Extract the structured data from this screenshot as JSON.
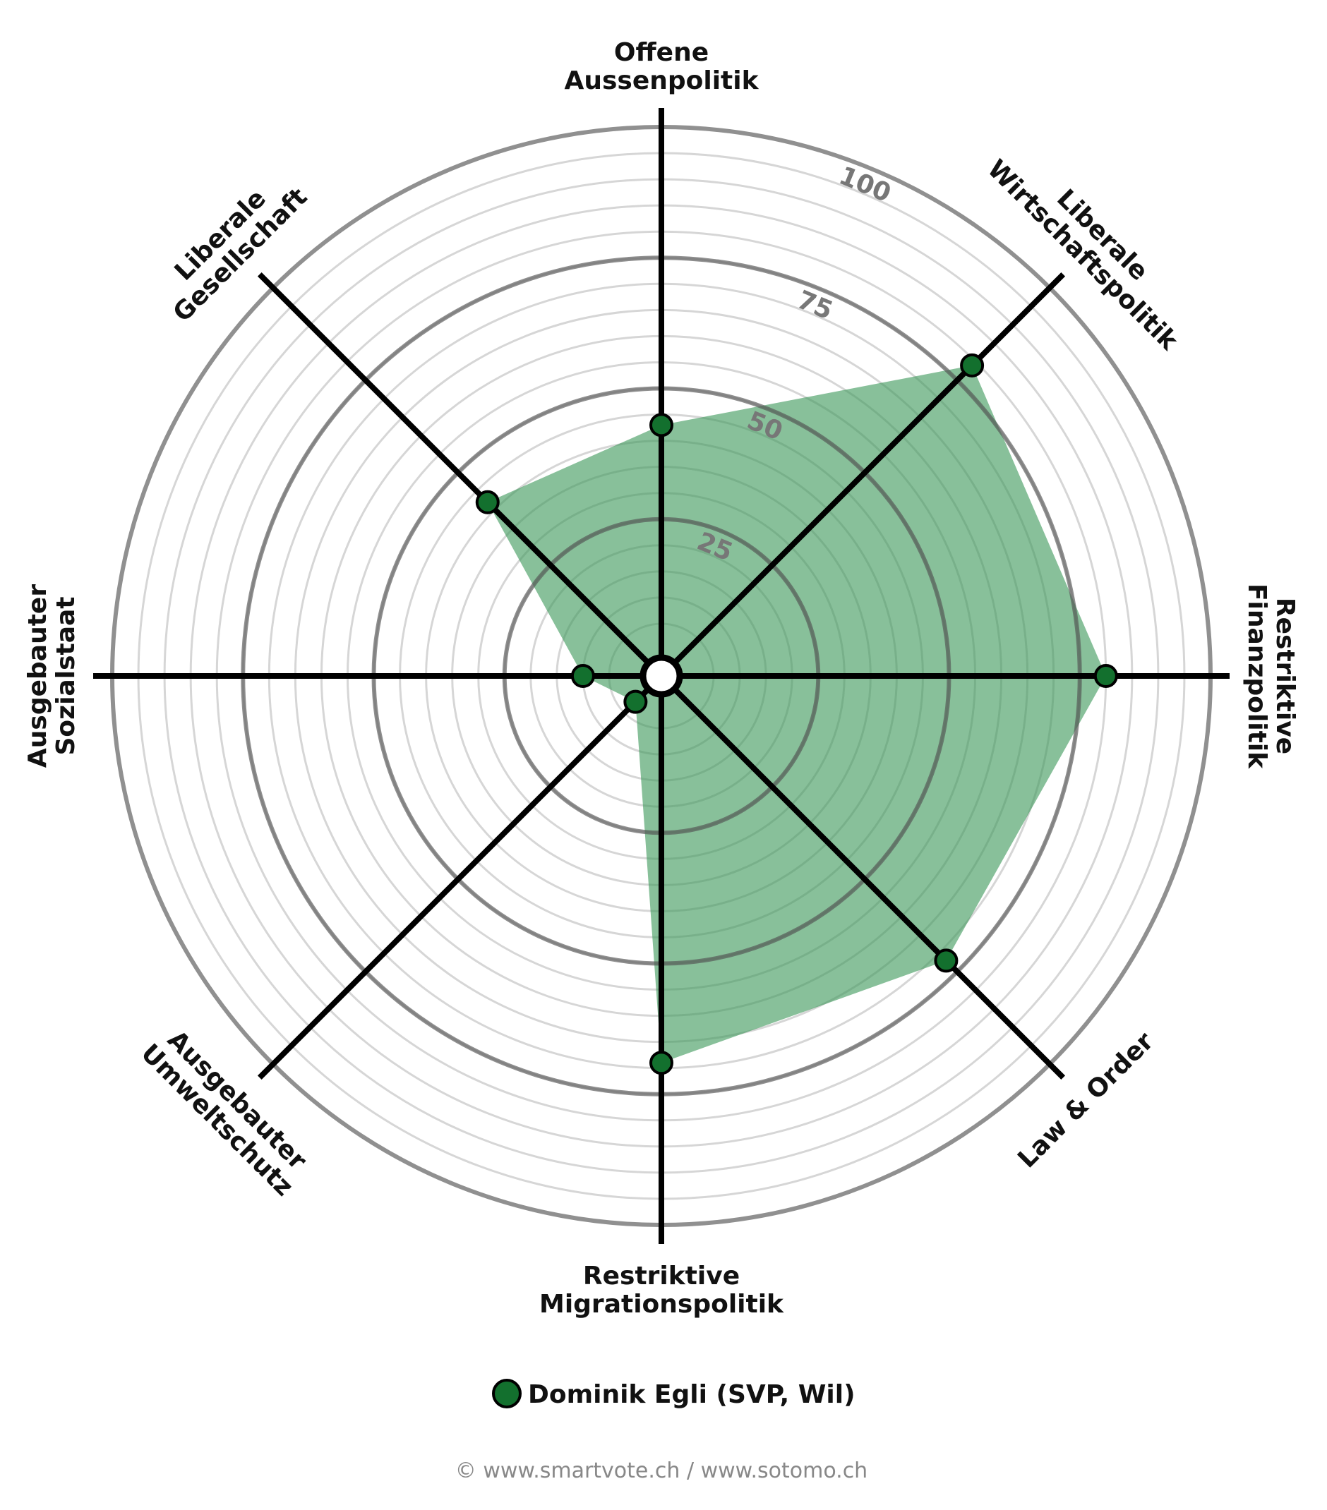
{
  "chart_data": {
    "type": "radar",
    "categories": [
      [
        "Offene",
        "Aussenpolitik"
      ],
      [
        "Liberale",
        "Wirtschaftspolitik"
      ],
      [
        "Restriktive",
        "Finanzpolitik"
      ],
      [
        "Law & Order"
      ],
      [
        "Restriktive",
        "Migrationspolitik"
      ],
      [
        "Ausgebauter",
        "Umweltschutz"
      ],
      [
        "Ausgebauter",
        "Sozialstaat"
      ],
      [
        "Liberale",
        "Gesellschaft"
      ]
    ],
    "series": [
      {
        "name": "Dominik Egli (SVP, Wil)",
        "color": "#13702e",
        "fill": "#3f9a5c",
        "values": [
          43,
          79,
          80,
          72,
          69,
          2,
          10,
          42
        ]
      }
    ],
    "rlim": [
      0,
      100
    ],
    "rticks": [
      25,
      50,
      75,
      100
    ],
    "minor_step": 5,
    "footer": "© www.smartvote.ch / www.sotomo.ch"
  }
}
